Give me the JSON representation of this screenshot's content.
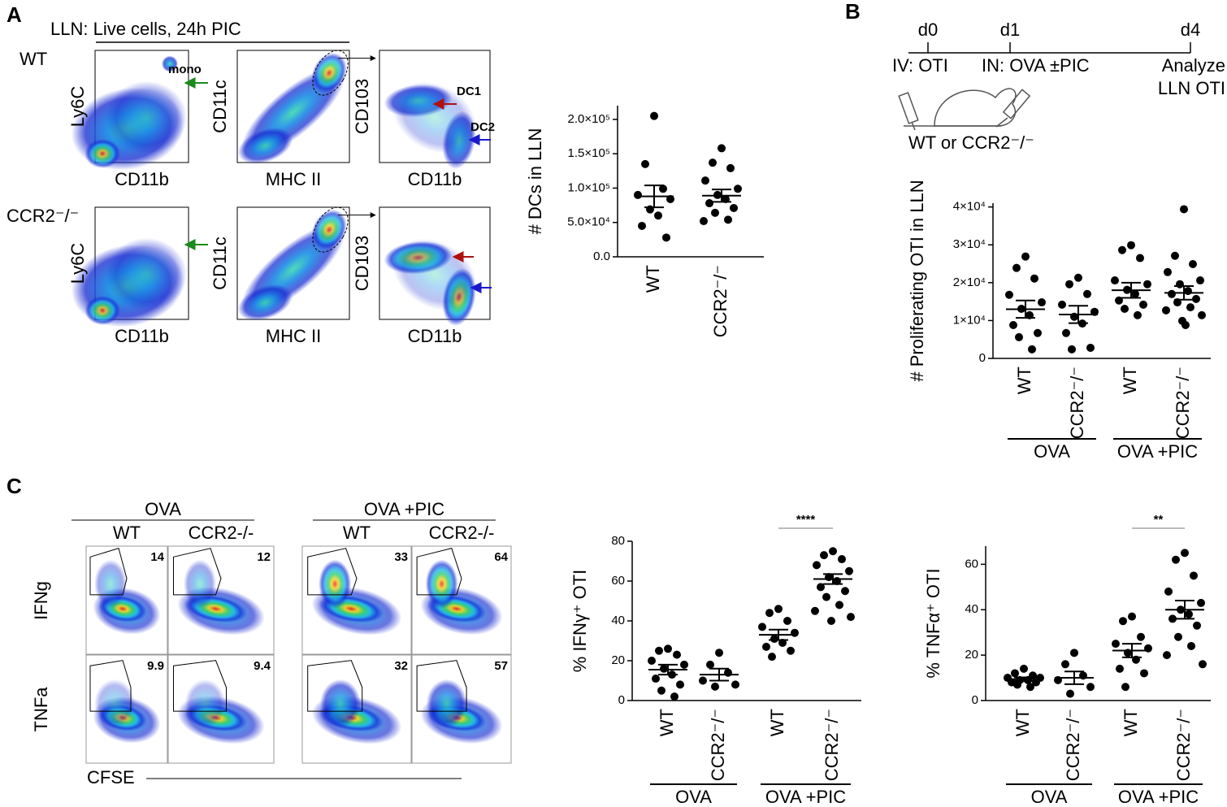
{
  "panel_labels": [
    "A",
    "B",
    "C"
  ],
  "panel_a": {
    "title": "LLN: Live cells, 24h PIC",
    "rows": [
      "WT",
      "CCR2⁻/⁻"
    ],
    "plots": [
      {
        "y_label": "Ly6C",
        "x_label": "CD11b"
      },
      {
        "y_label": "CD11c",
        "x_label": "MHC II"
      },
      {
        "y_label": "CD103",
        "x_label": "CD11b"
      }
    ],
    "annotations": [
      "mono",
      "DC1",
      "DC2"
    ]
  },
  "panel_b": {
    "timeline": [
      "d0",
      "d1",
      "d4"
    ],
    "steps": [
      "IV: OTI",
      "IN: OVA ±PIC",
      "Analyze",
      "LLN OTI"
    ],
    "mouse_label": "WT or CCR2⁻/⁻"
  },
  "panel_c": {
    "groups": [
      "OVA",
      "OVA +PIC"
    ],
    "columns": [
      "WT",
      "CCR2-/-",
      "WT",
      "CCR2-/-"
    ],
    "rows": [
      "IFNg",
      "TNFa"
    ],
    "x_label": "CFSE",
    "gate_values": [
      [
        14,
        12,
        33,
        64
      ],
      [
        9.9,
        9.4,
        32,
        57
      ]
    ]
  },
  "chart_data": [
    {
      "type": "dot",
      "y_label": "# DCs in LLN",
      "categories": [
        "WT",
        "CCR2⁻/⁻"
      ],
      "points": [
        [
          205000,
          135000,
          99000,
          90000,
          84000,
          69000,
          60000,
          45000,
          28000
        ],
        [
          158000,
          137000,
          129000,
          111000,
          99000,
          90000,
          84000,
          78000,
          71000,
          64000,
          54000,
          52000
        ]
      ],
      "means": [
        88000,
        89000
      ],
      "sem": [
        16000,
        9000
      ],
      "ylim": [
        0,
        220000
      ],
      "yticks": [
        {
          "value": 0,
          "label": "0.0"
        },
        {
          "value": 50000,
          "label": "5.0×10⁴"
        },
        {
          "value": 100000,
          "label": "1.0×10⁵"
        },
        {
          "value": 150000,
          "label": "1.5×10⁵"
        },
        {
          "value": 200000,
          "label": "2.0×10⁵"
        }
      ]
    },
    {
      "type": "dot",
      "y_label": "# Proliferating OTI in LLN",
      "categories": [
        "WT",
        "CCR2⁻/⁻",
        "WT",
        "CCR2⁻/⁻"
      ],
      "group_labels": [
        "OVA",
        "OVA +PIC"
      ],
      "points": [
        [
          26900,
          23900,
          21100,
          16800,
          14800,
          13100,
          11400,
          8800,
          6700,
          5600,
          2400
        ],
        [
          21300,
          19600,
          17000,
          14200,
          12300,
          11000,
          9200,
          6700,
          2800,
          2400
        ],
        [
          29900,
          28600,
          26500,
          20600,
          19600,
          18100,
          17000,
          15300,
          14200,
          13100,
          11400
        ],
        [
          39400,
          27100,
          24900,
          22800,
          20600,
          19600,
          17800,
          17000,
          15700,
          14800,
          13500,
          12700,
          11400,
          9900,
          8800
        ]
      ],
      "means": [
        13000,
        11600,
        18000,
        17300
      ],
      "sem": [
        2300,
        2300,
        2000,
        1800
      ],
      "ylim": [
        0,
        41000
      ],
      "yticks": [
        0,
        {
          "value": 10000,
          "label": "1×10⁴"
        },
        {
          "value": 20000,
          "label": "2×10⁴"
        },
        {
          "value": 30000,
          "label": "3×10⁴"
        },
        {
          "value": 40000,
          "label": "4×10⁴"
        }
      ]
    },
    {
      "type": "dot",
      "y_label": "% IFNγ⁺ OTI",
      "categories": [
        "WT",
        "CCR2⁻/⁻",
        "WT",
        "CCR2⁻/⁻"
      ],
      "group_labels": [
        "OVA",
        "OVA +PIC"
      ],
      "points": [
        [
          26,
          25,
          23,
          20,
          18,
          16,
          13,
          11,
          8,
          5,
          2
        ],
        [
          24,
          18,
          14,
          10,
          8,
          7
        ],
        [
          46,
          44,
          40,
          37,
          34,
          31,
          29,
          27,
          25,
          22
        ],
        [
          75,
          73,
          71,
          68,
          65,
          62,
          60,
          57,
          55,
          52,
          48,
          45,
          42,
          40
        ]
      ],
      "means": [
        15.5,
        13,
        33,
        61
      ],
      "sem": [
        2.5,
        3,
        2.6,
        2.5
      ],
      "ylim": [
        0,
        80
      ],
      "yticks": [
        0,
        20,
        40,
        60,
        80
      ],
      "significance": [
        "****"
      ]
    },
    {
      "type": "dot",
      "y_label": "% TNFα⁺ OTI",
      "categories": [
        "WT",
        "CCR2⁻/⁻",
        "WT",
        "CCR2⁻/⁻"
      ],
      "group_labels": [
        "OVA",
        "OVA +PIC"
      ],
      "points": [
        [
          14,
          12,
          11,
          10,
          10,
          9,
          9,
          8,
          8,
          7,
          6
        ],
        [
          21,
          16,
          11,
          9,
          6,
          3
        ],
        [
          37,
          35,
          28,
          25,
          23,
          21,
          18,
          14,
          12,
          6
        ],
        [
          65,
          62,
          55,
          48,
          43,
          40,
          38,
          36,
          33,
          28,
          24,
          20,
          16
        ]
      ],
      "means": [
        9.4,
        10,
        22,
        40
      ],
      "sem": [
        0.8,
        2.8,
        3,
        4
      ],
      "ylim": [
        0,
        68
      ],
      "yticks": [
        0,
        20,
        40,
        60
      ],
      "significance": [
        "**"
      ]
    }
  ]
}
